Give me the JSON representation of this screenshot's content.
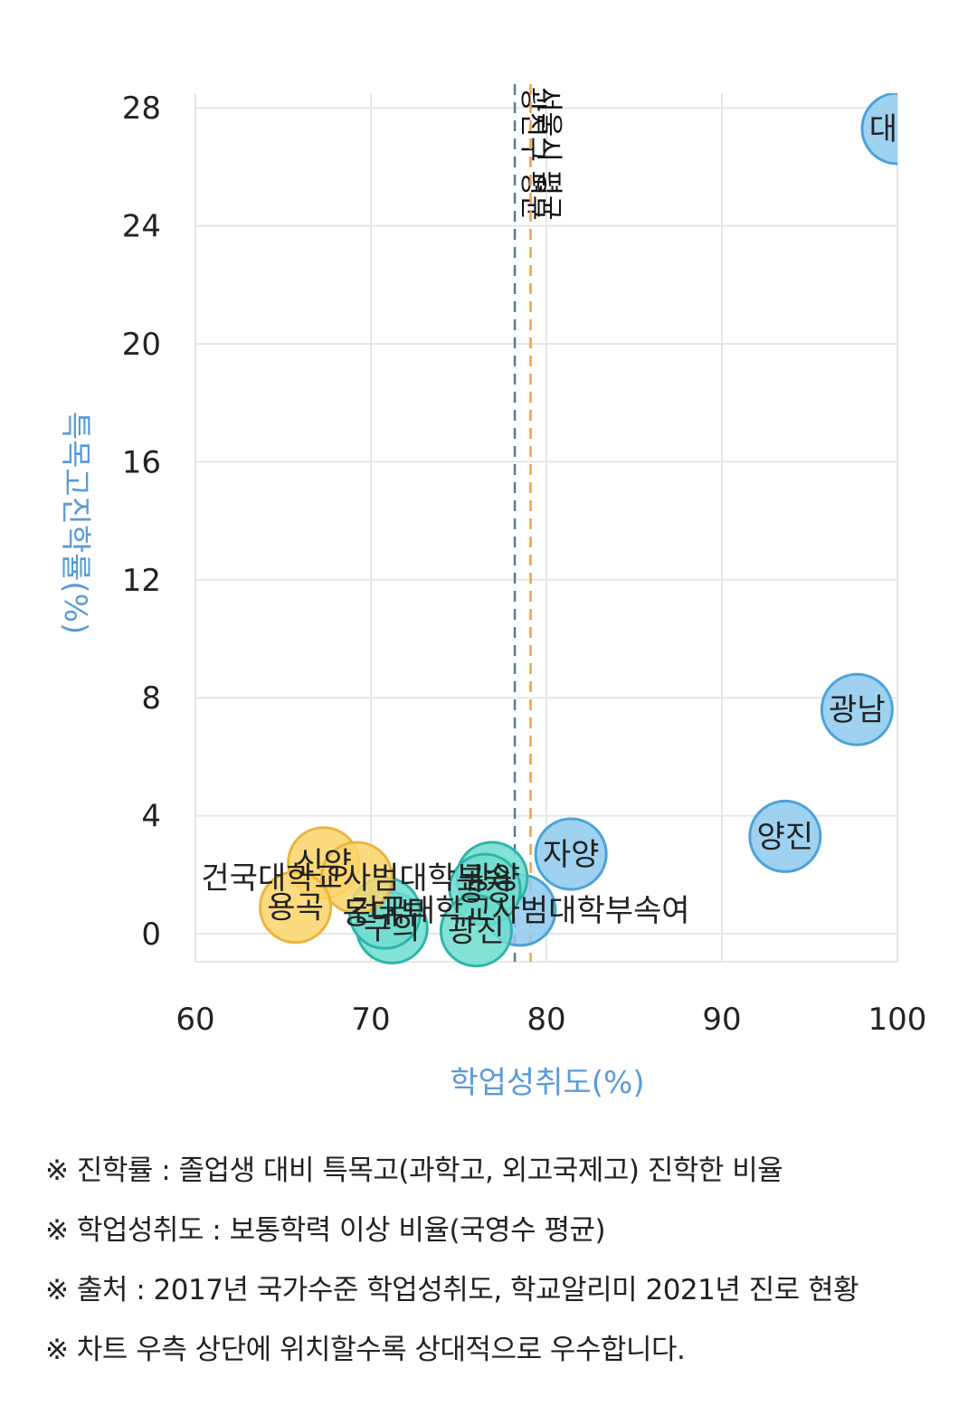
{
  "chart_data": {
    "type": "scatter",
    "xlabel": "학업성취도(%)",
    "ylabel": "특목고진학률(%)",
    "xlim": [
      60,
      100
    ],
    "ylim": [
      -1,
      28.5
    ],
    "xticks": [
      60,
      70,
      80,
      90,
      100
    ],
    "yticks": [
      0,
      4,
      8,
      12,
      16,
      20,
      24,
      28
    ],
    "grid": true,
    "reference_lines": [
      {
        "label": "광진구 평균",
        "x": 78.2,
        "color": "#5a7c8c"
      },
      {
        "label": "서울시 평균",
        "x": 79.1,
        "color": "#f0a040"
      }
    ],
    "points": [
      {
        "label": "대원",
        "x": 100,
        "y": 27.3,
        "color": "#8ec9ee"
      },
      {
        "label": "광남",
        "x": 97.7,
        "y": 7.6,
        "color": "#8ec9ee"
      },
      {
        "label": "양진",
        "x": 93.6,
        "y": 3.3,
        "color": "#8ec9ee"
      },
      {
        "label": "자양",
        "x": 81.4,
        "y": 2.7,
        "color": "#8ec9ee"
      },
      {
        "label": "건국대학교사범대학부속여",
        "x": 78.5,
        "y": 0.8,
        "color": "#8ec9ee"
      },
      {
        "label": "광양",
        "x": 76.9,
        "y": 1.9,
        "color": "#6fdccf"
      },
      {
        "label": "광장",
        "x": 76.5,
        "y": 1.5,
        "color": "#6fdccf"
      },
      {
        "label": "구의",
        "x": 71.2,
        "y": 0.2,
        "color": "#6fdccf"
      },
      {
        "label": "동대부",
        "x": 70.8,
        "y": 0.7,
        "color": "#6fdccf"
      },
      {
        "label": "광진",
        "x": 76.0,
        "y": 0.1,
        "color": "#6fdccf"
      },
      {
        "label": "신양",
        "x": 67.3,
        "y": 2.4,
        "color": "#fcd56a"
      },
      {
        "label": "건국대학교사범대학부속",
        "x": 69.2,
        "y": 1.9,
        "color": "#fcd56a"
      },
      {
        "label": "용곡",
        "x": 65.7,
        "y": 0.9,
        "color": "#fcd56a"
      }
    ]
  },
  "notes": [
    "※ 진학률 : 졸업생 대비 특목고(과학고, 외고국제고) 진학한 비율",
    "※ 학업성취도 : 보통학력 이상 비율(국영수 평균)",
    "※ 출처 : 2017년 국가수준 학업성취도, 학교알리미 2021년 진로 현황",
    "※ 차트 우측 상단에 위치할수록 상대적으로 우수합니다."
  ]
}
